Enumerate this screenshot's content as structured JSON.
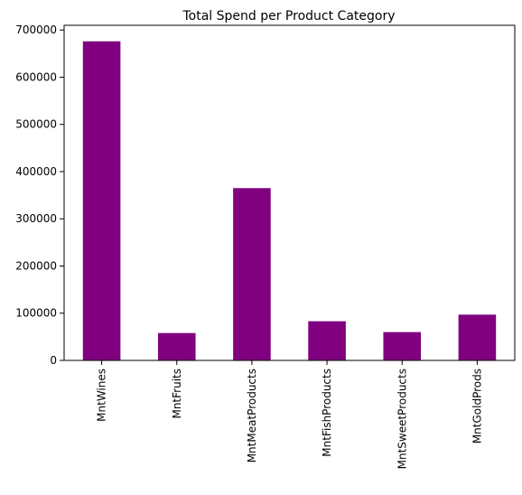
{
  "chart_data": {
    "type": "bar",
    "title": "Total Spend per Product Category",
    "xlabel": "",
    "ylabel": "",
    "categories": [
      "MntWines",
      "MntFruits",
      "MntMeatProducts",
      "MntFishProducts",
      "MntSweetProducts",
      "MntGoldProds"
    ],
    "values": [
      676000,
      58000,
      365000,
      83000,
      60000,
      97000
    ],
    "ylim": [
      0,
      710000
    ],
    "yticks": [
      0,
      100000,
      200000,
      300000,
      400000,
      500000,
      600000,
      700000
    ],
    "ytick_labels": [
      "0",
      "100000",
      "200000",
      "300000",
      "400000",
      "500000",
      "600000",
      "700000"
    ],
    "bar_color": "#800080",
    "grid": false,
    "legend": "none",
    "xtick_rotation": "vertical"
  }
}
